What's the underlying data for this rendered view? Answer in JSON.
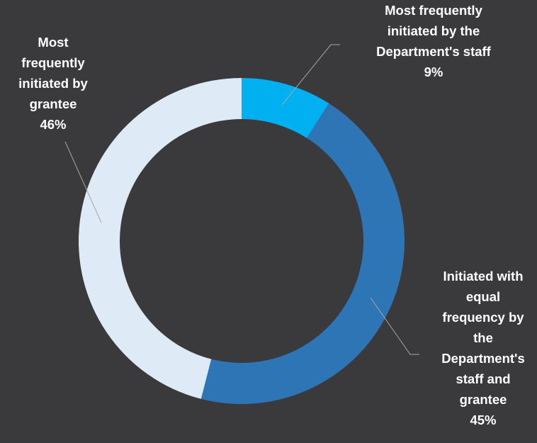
{
  "chart_data": {
    "type": "pie",
    "variant": "donut",
    "title": "",
    "slices": [
      {
        "label_lines": [
          "Most frequently",
          "initiated by the",
          "Department's staff",
          "9%"
        ],
        "value": 9,
        "color": "#00b0f0"
      },
      {
        "label_lines": [
          "Initiated with",
          "equal",
          "frequency by",
          "the",
          "Department's",
          "staff and",
          "grantee",
          "45%"
        ],
        "value": 45,
        "color": "#2e75b6"
      },
      {
        "label_lines": [
          "Most",
          "frequently",
          "initiated by",
          "grantee",
          "46%"
        ],
        "value": 46,
        "color": "#deebf7"
      }
    ]
  },
  "colors": {
    "background": "#3a3a3c",
    "leader": "#a6a6a6"
  }
}
